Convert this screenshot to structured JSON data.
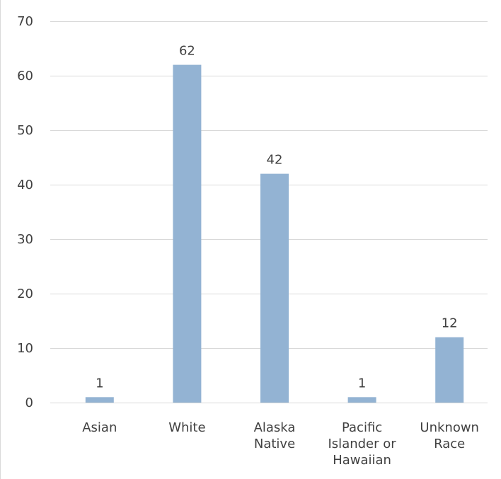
{
  "chart_data": {
    "type": "bar",
    "categories": [
      [
        "Asian"
      ],
      [
        "White"
      ],
      [
        "Alaska",
        "Native"
      ],
      [
        "Pacific",
        "Islander or",
        "Hawaiian"
      ],
      [
        "Unknown",
        "Race"
      ]
    ],
    "values": [
      1,
      62,
      42,
      1,
      12
    ],
    "data_labels": [
      "1",
      "62",
      "42",
      "1",
      "12"
    ],
    "y_ticks": [
      "0",
      "10",
      "20",
      "30",
      "40",
      "50",
      "60",
      "70"
    ],
    "ylim": [
      0,
      70
    ],
    "grid": true,
    "legend": "none",
    "title": "",
    "xlabel": "",
    "ylabel": "",
    "colors": {
      "bar": "#93b3d3",
      "grid": "#d9d9d9",
      "text": "#404040"
    }
  }
}
